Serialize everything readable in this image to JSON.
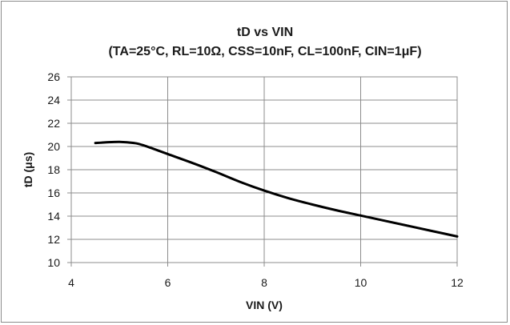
{
  "chart_data": {
    "type": "line",
    "title": "tD vs VIN",
    "subtitle": "(TA=25°C, RL=10Ω, CSS=10nF, CL=100nF, CIN=1μF)",
    "xlabel": "VIN (V)",
    "ylabel": "tD (μs)",
    "xlim": [
      4,
      12
    ],
    "ylim": [
      10,
      26
    ],
    "xticks": [
      4,
      6,
      8,
      10,
      12
    ],
    "yticks": [
      10,
      12,
      14,
      16,
      18,
      20,
      22,
      24,
      26
    ],
    "grid": true,
    "legend": "none",
    "series": [
      {
        "color": "#000000",
        "x": [
          4.5,
          4.7,
          5.0,
          5.3,
          5.5,
          6.0,
          6.5,
          7.0,
          7.5,
          8.0,
          8.5,
          9.0,
          9.5,
          10.0,
          10.5,
          11.0,
          11.5,
          12.0
        ],
        "y": [
          20.3,
          20.35,
          20.4,
          20.3,
          20.1,
          19.35,
          18.6,
          17.8,
          16.95,
          16.2,
          15.55,
          15.0,
          14.5,
          14.05,
          13.6,
          13.15,
          12.7,
          12.25
        ]
      }
    ]
  }
}
